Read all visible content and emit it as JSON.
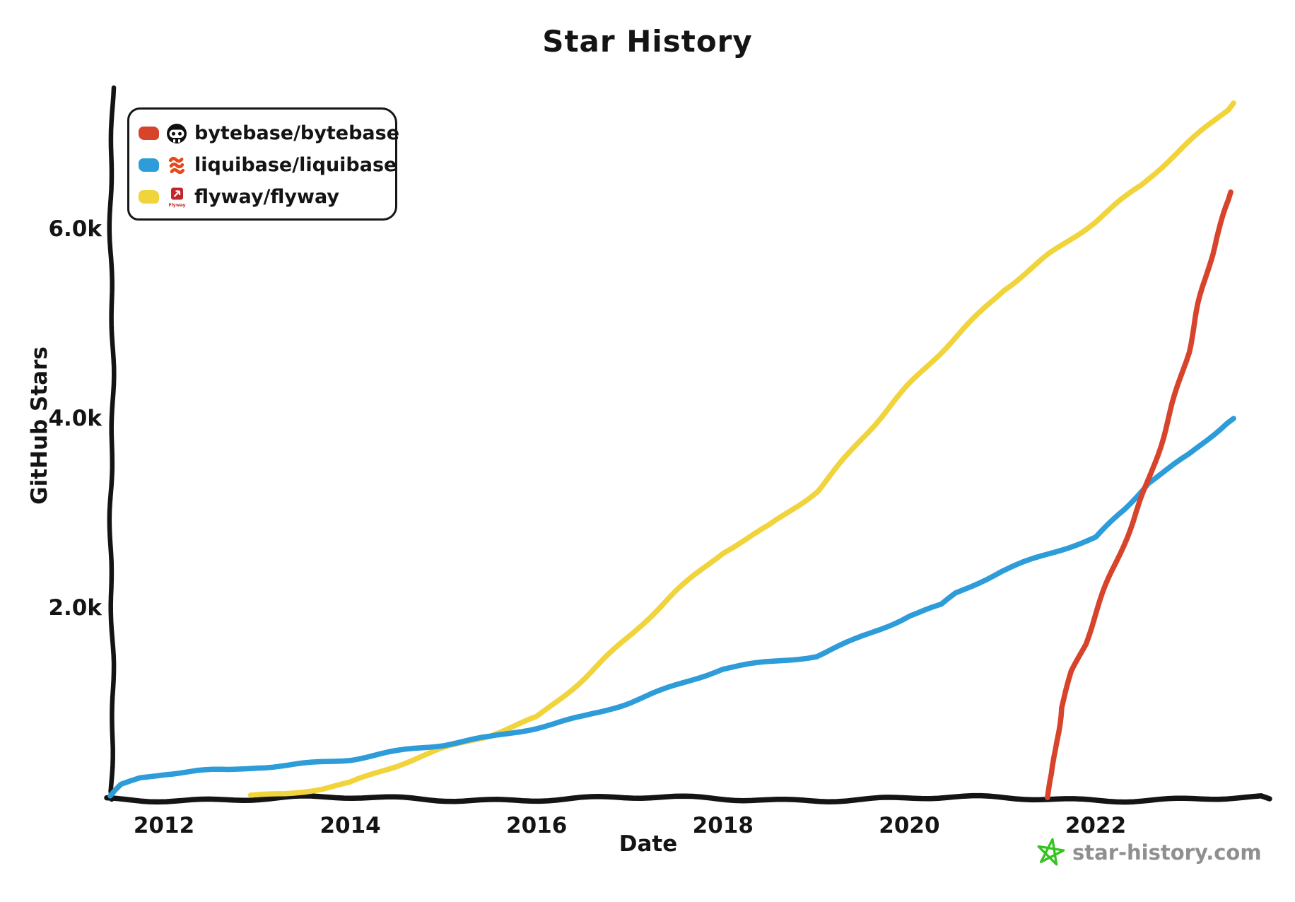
{
  "title": "Star History",
  "y_axis": {
    "label": "GitHub Stars",
    "ticks": [
      "2.0k",
      "4.0k",
      "6.0k"
    ]
  },
  "x_axis": {
    "label": "Date",
    "ticks": [
      "2012",
      "2014",
      "2016",
      "2018",
      "2020",
      "2022"
    ]
  },
  "legend": {
    "items": [
      {
        "label": "bytebase/bytebase",
        "color": "#d8432b",
        "icon": "bytebase-avatar"
      },
      {
        "label": "liquibase/liquibase",
        "color": "#2d9cd9",
        "icon": "liquibase-logo"
      },
      {
        "label": "flyway/flyway",
        "color": "#f1d43c",
        "icon": "flyway-logo"
      }
    ]
  },
  "watermark": {
    "text": "star-history.com",
    "text_color": "#8f8f8f",
    "star_color": "#33c41e",
    "icon": "star-icon"
  },
  "colors": {
    "axis": "#141414",
    "background": "#ffffff"
  },
  "chart_data": {
    "type": "line",
    "title": "Star History",
    "xlabel": "Date",
    "ylabel": "GitHub Stars",
    "x_range": [
      2011.4,
      2023.7
    ],
    "y_range": [
      0,
      7600
    ],
    "x_ticks": [
      2012,
      2014,
      2016,
      2018,
      2020,
      2022
    ],
    "y_ticks": [
      2000,
      4000,
      6000
    ],
    "grid": false,
    "legend_position": "top-left",
    "style": "hand-drawn",
    "series": [
      {
        "name": "bytebase/bytebase",
        "color": "#d8432b",
        "points": [
          [
            2021.47,
            0
          ],
          [
            2021.52,
            250
          ],
          [
            2021.56,
            600
          ],
          [
            2021.62,
            950
          ],
          [
            2021.75,
            1330
          ],
          [
            2021.9,
            1620
          ],
          [
            2022.0,
            1900
          ],
          [
            2022.2,
            2400
          ],
          [
            2022.4,
            2920
          ],
          [
            2022.55,
            3340
          ],
          [
            2022.7,
            3800
          ],
          [
            2022.85,
            4250
          ],
          [
            2023.0,
            4700
          ],
          [
            2023.15,
            5300
          ],
          [
            2023.3,
            5900
          ],
          [
            2023.45,
            6390
          ]
        ]
      },
      {
        "name": "liquibase/liquibase",
        "color": "#2d9cd9",
        "points": [
          [
            2011.44,
            0
          ],
          [
            2011.55,
            110
          ],
          [
            2011.75,
            185
          ],
          [
            2012.0,
            235
          ],
          [
            2012.35,
            275
          ],
          [
            2012.7,
            295
          ],
          [
            2013.0,
            335
          ],
          [
            2013.5,
            370
          ],
          [
            2014.0,
            405
          ],
          [
            2014.5,
            470
          ],
          [
            2015.0,
            540
          ],
          [
            2015.5,
            630
          ],
          [
            2016.0,
            750
          ],
          [
            2016.5,
            870
          ],
          [
            2017.0,
            1010
          ],
          [
            2017.5,
            1170
          ],
          [
            2018.0,
            1340
          ],
          [
            2019.0,
            1500
          ],
          [
            2019.5,
            1720
          ],
          [
            2020.0,
            1930
          ],
          [
            2020.35,
            2030
          ],
          [
            2020.5,
            2150
          ],
          [
            2021.0,
            2370
          ],
          [
            2021.5,
            2560
          ],
          [
            2022.0,
            2750
          ],
          [
            2022.3,
            3050
          ],
          [
            2022.55,
            3340
          ],
          [
            2023.0,
            3620
          ],
          [
            2023.48,
            4000
          ]
        ]
      },
      {
        "name": "flyway/flyway",
        "color": "#f1d43c",
        "points": [
          [
            2012.93,
            30
          ],
          [
            2013.3,
            60
          ],
          [
            2013.7,
            100
          ],
          [
            2014.0,
            150
          ],
          [
            2014.5,
            320
          ],
          [
            2015.0,
            500
          ],
          [
            2015.5,
            660
          ],
          [
            2016.0,
            860
          ],
          [
            2016.5,
            1270
          ],
          [
            2017.0,
            1700
          ],
          [
            2017.5,
            2150
          ],
          [
            2018.0,
            2580
          ],
          [
            2018.5,
            2880
          ],
          [
            2019.0,
            3250
          ],
          [
            2019.5,
            3800
          ],
          [
            2020.0,
            4330
          ],
          [
            2020.5,
            4850
          ],
          [
            2021.0,
            5370
          ],
          [
            2021.5,
            5750
          ],
          [
            2022.0,
            6080
          ],
          [
            2022.5,
            6450
          ],
          [
            2023.0,
            6900
          ],
          [
            2023.48,
            7330
          ]
        ]
      }
    ]
  }
}
